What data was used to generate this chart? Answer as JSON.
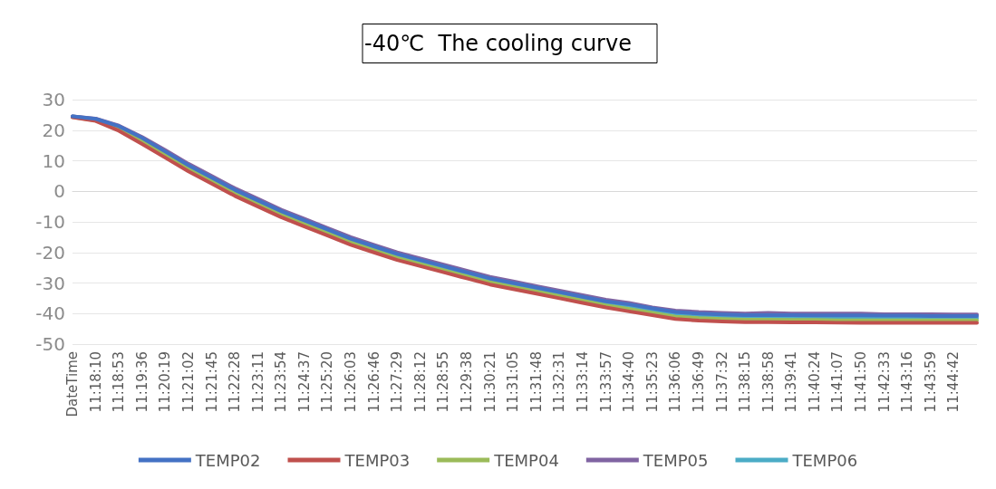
{
  "chart_data": {
    "type": "line",
    "title": "-40℃  The cooling curve",
    "categories": [
      "DateTime",
      "11:18:10",
      "11:18:53",
      "11:19:36",
      "11:20:19",
      "11:21:02",
      "11:21:45",
      "11:22:28",
      "11:23:11",
      "11:23:54",
      "11:24:37",
      "11:25:20",
      "11:26:03",
      "11:26:46",
      "11:27:29",
      "11:28:12",
      "11:28:55",
      "11:29:38",
      "11:30:21",
      "11:31:05",
      "11:31:48",
      "11:32:31",
      "11:33:14",
      "11:33:57",
      "11:34:40",
      "11:35:23",
      "11:36:06",
      "11:36:49",
      "11:37:32",
      "11:38:15",
      "11:38:58",
      "11:39:41",
      "11:40:24",
      "11:41:07",
      "11:41:50",
      "11:42:33",
      "11:43:16",
      "11:43:59",
      "11:44:42",
      null
    ],
    "series": [
      {
        "name": "TEMP02",
        "color": "#4472c4",
        "values": [
          24.5,
          23.7,
          21.3,
          17.5,
          13,
          8.5,
          4.5,
          0.5,
          -3,
          -6.5,
          -9.5,
          -12.5,
          -15.5,
          -18,
          -20.5,
          -22.5,
          -24.5,
          -26.5,
          -28.5,
          -30,
          -31.5,
          -33,
          -34.5,
          -36,
          -37,
          -38.3,
          -39.5,
          -40,
          -40.3,
          -40.5,
          -40.5,
          -40.5,
          -40.6,
          -40.6,
          -40.6,
          -40.7,
          -40.7,
          -40.8,
          -40.8,
          -40.8
        ]
      },
      {
        "name": "TEMP03",
        "color": "#c0504d",
        "values": [
          24.2,
          23,
          19.8,
          15.5,
          11,
          6.5,
          2.5,
          -1.5,
          -5,
          -8.5,
          -11.5,
          -14.5,
          -17.5,
          -20,
          -22.5,
          -24.5,
          -26.5,
          -28.5,
          -30.5,
          -32,
          -33.5,
          -35,
          -36.5,
          -38,
          -39.3,
          -40.5,
          -41.8,
          -42.3,
          -42.6,
          -42.8,
          -42.8,
          -42.9,
          -42.9,
          -43,
          -43,
          -43,
          -43,
          -43,
          -43,
          -43
        ]
      },
      {
        "name": "TEMP04",
        "color": "#9bbb59",
        "values": [
          24.3,
          23.2,
          20.5,
          16.3,
          11.8,
          7.2,
          3.2,
          -0.8,
          -4.3,
          -7.8,
          -10.8,
          -13.8,
          -16.8,
          -19.3,
          -21.8,
          -23.8,
          -25.8,
          -27.8,
          -29.8,
          -31.3,
          -32.8,
          -34.3,
          -35.8,
          -37.3,
          -38.5,
          -39.8,
          -41,
          -41.5,
          -41.8,
          -42,
          -42,
          -42.1,
          -42.1,
          -42.2,
          -42.2,
          -42.2,
          -42.2,
          -42.2,
          -42.2,
          -42.2
        ]
      },
      {
        "name": "TEMP05",
        "color": "#8064a2",
        "values": [
          24.5,
          23.8,
          21.5,
          17.8,
          13.5,
          9,
          5,
          1,
          -2.5,
          -6,
          -9,
          -12,
          -15,
          -17.5,
          -20,
          -22,
          -24,
          -26,
          -28,
          -29.5,
          -31,
          -32.5,
          -34,
          -35.5,
          -36.5,
          -38,
          -39,
          -39.5,
          -39.8,
          -40,
          -39.8,
          -40,
          -40,
          -40,
          -40,
          -40.2,
          -40.2,
          -40.2,
          -40.3,
          -40.3
        ]
      },
      {
        "name": "TEMP06",
        "color": "#4bacc6",
        "values": [
          24.5,
          23.5,
          21,
          17,
          12.5,
          8,
          4,
          0,
          -3.5,
          -7,
          -10,
          -13,
          -16,
          -18.5,
          -21,
          -23,
          -25,
          -27,
          -29,
          -30.5,
          -32,
          -33.5,
          -35,
          -36.5,
          -37.5,
          -38.8,
          -40,
          -40.6,
          -41,
          -41.2,
          -41.3,
          -41.4,
          -41.4,
          -41.5,
          -41.5,
          -41.5,
          -41.5,
          -41.5,
          -41.5,
          -41.5
        ]
      }
    ],
    "ylim": [
      -50,
      30
    ],
    "yticks": [
      -50,
      -40,
      -30,
      -20,
      -10,
      0,
      10,
      20,
      30
    ],
    "grid": "y",
    "legend": "bottom",
    "marker": "none",
    "line_style": "solid"
  }
}
